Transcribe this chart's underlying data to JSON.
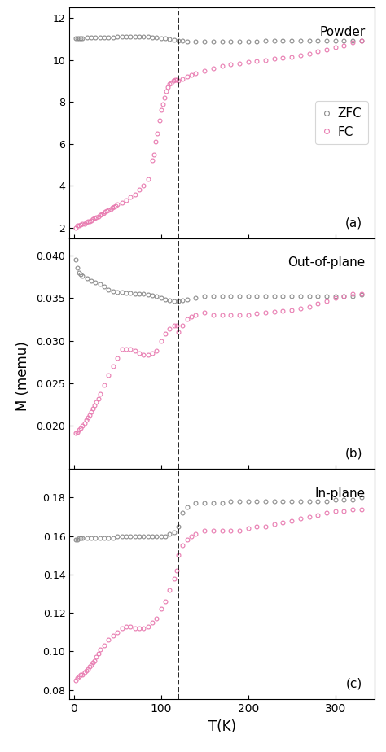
{
  "dashed_line_x": 120,
  "x_range": [
    0,
    340
  ],
  "fc_color": "#e87ab0",
  "zfc_color": "#8a8a8a",
  "panels": [
    {
      "label": "(a)",
      "title": "Powder",
      "ylim": [
        1.5,
        12.5
      ],
      "yticks": [
        2,
        4,
        6,
        8,
        10,
        12
      ],
      "legend": true,
      "fc": {
        "x": [
          2,
          4,
          6,
          8,
          10,
          12,
          14,
          16,
          18,
          20,
          22,
          24,
          26,
          28,
          30,
          32,
          34,
          36,
          38,
          40,
          42,
          44,
          46,
          48,
          50,
          55,
          60,
          65,
          70,
          75,
          80,
          85,
          90,
          92,
          94,
          96,
          98,
          100,
          102,
          104,
          106,
          108,
          110,
          112,
          114,
          116,
          118,
          120,
          125,
          130,
          135,
          140,
          150,
          160,
          170,
          180,
          190,
          200,
          210,
          220,
          230,
          240,
          250,
          260,
          270,
          280,
          290,
          300,
          310,
          320,
          330
        ],
        "y": [
          2.0,
          2.1,
          2.1,
          2.15,
          2.2,
          2.2,
          2.25,
          2.3,
          2.3,
          2.35,
          2.4,
          2.45,
          2.5,
          2.55,
          2.6,
          2.65,
          2.7,
          2.75,
          2.8,
          2.85,
          2.9,
          2.95,
          3.0,
          3.05,
          3.1,
          3.2,
          3.3,
          3.45,
          3.6,
          3.8,
          4.0,
          4.3,
          5.2,
          5.5,
          6.1,
          6.5,
          7.1,
          7.6,
          7.9,
          8.2,
          8.5,
          8.7,
          8.85,
          8.9,
          9.0,
          9.05,
          9.05,
          9.0,
          9.1,
          9.2,
          9.3,
          9.35,
          9.5,
          9.6,
          9.7,
          9.8,
          9.85,
          9.9,
          9.95,
          10.0,
          10.05,
          10.1,
          10.15,
          10.2,
          10.3,
          10.4,
          10.5,
          10.6,
          10.7,
          10.85,
          10.9
        ]
      },
      "zfc": {
        "x": [
          2,
          4,
          6,
          8,
          10,
          15,
          20,
          25,
          30,
          35,
          40,
          45,
          50,
          55,
          60,
          65,
          70,
          75,
          80,
          85,
          90,
          95,
          100,
          105,
          110,
          115,
          120,
          125,
          130,
          140,
          150,
          160,
          170,
          180,
          190,
          200,
          210,
          220,
          230,
          240,
          250,
          260,
          270,
          280,
          290,
          300,
          310,
          320,
          330
        ],
        "y": [
          11.05,
          11.05,
          11.05,
          11.05,
          11.05,
          11.07,
          11.07,
          11.07,
          11.08,
          11.08,
          11.08,
          11.09,
          11.1,
          11.1,
          11.1,
          11.1,
          11.1,
          11.1,
          11.1,
          11.1,
          11.08,
          11.07,
          11.05,
          11.03,
          11.0,
          10.97,
          10.92,
          10.9,
          10.88,
          10.87,
          10.87,
          10.87,
          10.87,
          10.87,
          10.88,
          10.88,
          10.89,
          10.9,
          10.9,
          10.9,
          10.9,
          10.9,
          10.9,
          10.9,
          10.9,
          10.9,
          10.9,
          10.9,
          10.92
        ]
      }
    },
    {
      "label": "(b)",
      "title": "Out-of-plane",
      "ylim": [
        0.015,
        0.042
      ],
      "yticks": [
        0.02,
        0.025,
        0.03,
        0.035,
        0.04
      ],
      "legend": false,
      "fc": {
        "x": [
          2,
          4,
          6,
          8,
          10,
          12,
          14,
          16,
          18,
          20,
          22,
          24,
          26,
          28,
          30,
          35,
          40,
          45,
          50,
          55,
          60,
          65,
          70,
          75,
          80,
          85,
          90,
          95,
          100,
          105,
          110,
          115,
          118,
          120,
          125,
          130,
          135,
          140,
          150,
          160,
          170,
          180,
          190,
          200,
          210,
          220,
          230,
          240,
          250,
          260,
          270,
          280,
          290,
          300,
          310,
          320,
          330
        ],
        "y": [
          0.0192,
          0.0193,
          0.0196,
          0.0198,
          0.02,
          0.0203,
          0.0207,
          0.021,
          0.0213,
          0.0217,
          0.022,
          0.0224,
          0.0228,
          0.0232,
          0.0238,
          0.0248,
          0.026,
          0.027,
          0.028,
          0.029,
          0.029,
          0.029,
          0.0288,
          0.0285,
          0.0283,
          0.0283,
          0.0285,
          0.0288,
          0.03,
          0.0308,
          0.0314,
          0.0318,
          0.0318,
          0.031,
          0.0318,
          0.0325,
          0.0328,
          0.033,
          0.0333,
          0.033,
          0.033,
          0.033,
          0.033,
          0.033,
          0.0332,
          0.0333,
          0.0334,
          0.0335,
          0.0336,
          0.0338,
          0.034,
          0.0343,
          0.0346,
          0.035,
          0.0352,
          0.0355,
          0.0355
        ]
      },
      "zfc": {
        "x": [
          2,
          4,
          6,
          8,
          10,
          15,
          20,
          25,
          30,
          35,
          40,
          45,
          50,
          55,
          60,
          65,
          70,
          75,
          80,
          85,
          90,
          95,
          100,
          105,
          110,
          115,
          120,
          125,
          130,
          140,
          150,
          160,
          170,
          180,
          190,
          200,
          210,
          220,
          230,
          240,
          250,
          260,
          270,
          280,
          290,
          300,
          310,
          320,
          330
        ],
        "y": [
          0.0395,
          0.0385,
          0.038,
          0.0378,
          0.0376,
          0.0373,
          0.037,
          0.0368,
          0.0366,
          0.0363,
          0.036,
          0.0358,
          0.0357,
          0.0357,
          0.0356,
          0.0356,
          0.0355,
          0.0355,
          0.0355,
          0.0354,
          0.0353,
          0.0352,
          0.035,
          0.0348,
          0.0347,
          0.0346,
          0.0346,
          0.0347,
          0.0348,
          0.035,
          0.0352,
          0.0352,
          0.0352,
          0.0352,
          0.0352,
          0.0352,
          0.0352,
          0.0352,
          0.0352,
          0.0352,
          0.0352,
          0.0352,
          0.0352,
          0.0352,
          0.0352,
          0.0352,
          0.0352,
          0.0352,
          0.0354
        ]
      }
    },
    {
      "label": "(c)",
      "title": "In-plane",
      "ylim": [
        0.075,
        0.195
      ],
      "yticks": [
        0.08,
        0.1,
        0.12,
        0.14,
        0.16,
        0.18
      ],
      "legend": false,
      "fc": {
        "x": [
          2,
          4,
          6,
          8,
          10,
          12,
          14,
          16,
          18,
          20,
          22,
          24,
          26,
          28,
          30,
          35,
          40,
          45,
          50,
          55,
          60,
          65,
          70,
          75,
          80,
          85,
          90,
          95,
          100,
          105,
          110,
          115,
          118,
          120,
          125,
          130,
          135,
          140,
          150,
          160,
          170,
          180,
          190,
          200,
          210,
          220,
          230,
          240,
          250,
          260,
          270,
          280,
          290,
          300,
          310,
          320,
          330
        ],
        "y": [
          0.085,
          0.086,
          0.087,
          0.088,
          0.088,
          0.089,
          0.09,
          0.091,
          0.092,
          0.093,
          0.094,
          0.095,
          0.097,
          0.099,
          0.101,
          0.103,
          0.106,
          0.108,
          0.11,
          0.112,
          0.113,
          0.113,
          0.112,
          0.112,
          0.112,
          0.113,
          0.115,
          0.117,
          0.122,
          0.126,
          0.132,
          0.138,
          0.142,
          0.15,
          0.155,
          0.158,
          0.16,
          0.161,
          0.163,
          0.163,
          0.163,
          0.163,
          0.163,
          0.164,
          0.165,
          0.165,
          0.166,
          0.167,
          0.168,
          0.169,
          0.17,
          0.171,
          0.172,
          0.173,
          0.173,
          0.174,
          0.174
        ]
      },
      "zfc": {
        "x": [
          2,
          4,
          6,
          8,
          10,
          15,
          20,
          25,
          30,
          35,
          40,
          45,
          50,
          55,
          60,
          65,
          70,
          75,
          80,
          85,
          90,
          95,
          100,
          105,
          110,
          115,
          120,
          125,
          130,
          140,
          150,
          160,
          170,
          180,
          190,
          200,
          210,
          220,
          230,
          240,
          250,
          260,
          270,
          280,
          290,
          300,
          310,
          320,
          330
        ],
        "y": [
          0.158,
          0.158,
          0.159,
          0.159,
          0.159,
          0.159,
          0.159,
          0.159,
          0.159,
          0.159,
          0.159,
          0.159,
          0.16,
          0.16,
          0.16,
          0.16,
          0.16,
          0.16,
          0.16,
          0.16,
          0.16,
          0.16,
          0.16,
          0.16,
          0.161,
          0.162,
          0.165,
          0.172,
          0.175,
          0.177,
          0.177,
          0.177,
          0.177,
          0.178,
          0.178,
          0.178,
          0.178,
          0.178,
          0.178,
          0.178,
          0.178,
          0.178,
          0.178,
          0.178,
          0.178,
          0.179,
          0.179,
          0.179,
          0.18
        ]
      }
    }
  ],
  "xlabel": "T(K)",
  "ylabel": "M (memu)",
  "xticks": [
    0,
    100,
    200,
    300
  ],
  "xlim": [
    -5,
    345
  ]
}
